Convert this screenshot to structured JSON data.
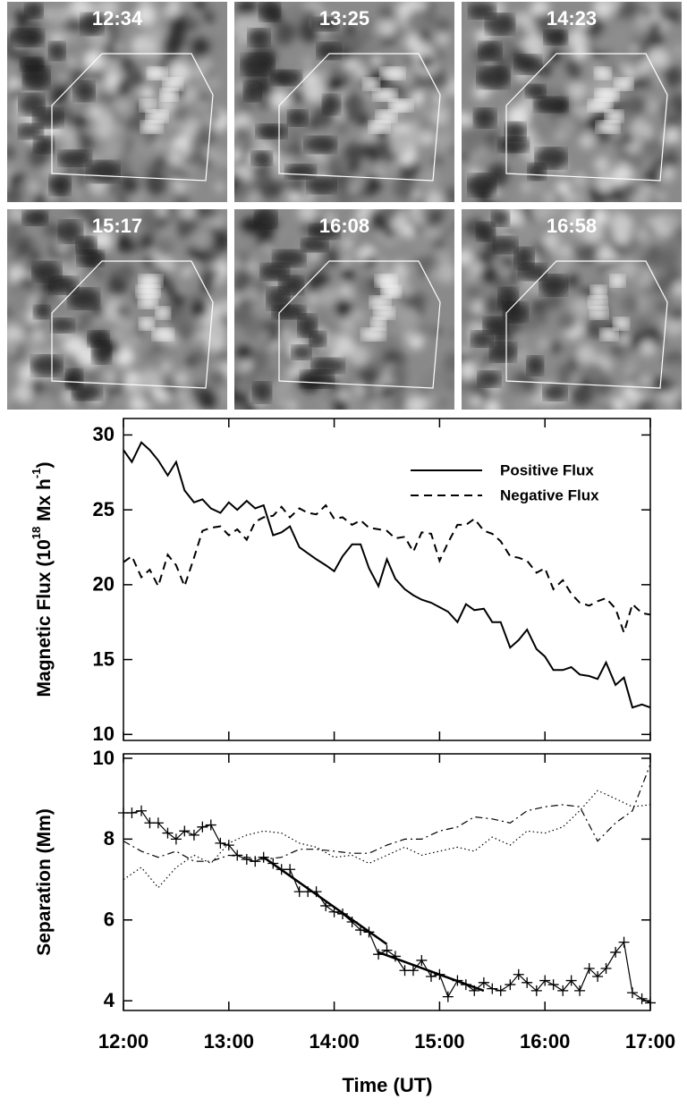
{
  "panels": [
    {
      "label": "12:34"
    },
    {
      "label": "13:25"
    },
    {
      "label": "14:23"
    },
    {
      "label": "15:17"
    },
    {
      "label": "16:08"
    },
    {
      "label": "16:58"
    }
  ],
  "chart_data": [
    {
      "type": "line",
      "ylabel": [
        {
          "text": "Magnetic Flux (10"
        },
        {
          "text": "18",
          "sup": true
        },
        {
          "text": " Mx h"
        },
        {
          "text": "-1",
          "sup": true
        },
        {
          "text": ")"
        }
      ],
      "xlim": [
        12,
        17
      ],
      "xticks": [
        12,
        13,
        14,
        15,
        16,
        17
      ],
      "show_xtick_labels": false,
      "ylim": [
        9.6,
        31.1
      ],
      "yticks": [
        10,
        15,
        20,
        25,
        30
      ],
      "legend": "upper right",
      "x": [
        12,
        12.08,
        12.17,
        12.25,
        12.33,
        12.42,
        12.5,
        12.58,
        12.67,
        12.75,
        12.83,
        12.92,
        13,
        13.08,
        13.17,
        13.25,
        13.33,
        13.42,
        13.5,
        13.58,
        13.67,
        13.75,
        13.83,
        13.92,
        14,
        14.08,
        14.17,
        14.25,
        14.33,
        14.42,
        14.5,
        14.58,
        14.67,
        14.75,
        14.83,
        14.92,
        15,
        15.08,
        15.17,
        15.25,
        15.33,
        15.42,
        15.5,
        15.58,
        15.67,
        15.75,
        15.83,
        15.92,
        16,
        16.08,
        16.17,
        16.25,
        16.33,
        16.42,
        16.5,
        16.58,
        16.67,
        16.75,
        16.83,
        16.92,
        17
      ],
      "series": [
        {
          "name": "Positive Flux",
          "color": "#000000",
          "style": "solid",
          "values": [
            29.0,
            28.2,
            29.5,
            29.0,
            28.3,
            27.3,
            28.2,
            26.3,
            25.5,
            25.7,
            25.1,
            24.8,
            25.5,
            25.0,
            25.6,
            25.1,
            25.3,
            23.3,
            23.5,
            23.9,
            22.5,
            22.1,
            21.7,
            21.3,
            20.9,
            21.9,
            22.7,
            22.7,
            21.1,
            19.9,
            21.7,
            20.4,
            19.7,
            19.3,
            19.0,
            18.8,
            18.5,
            18.2,
            17.5,
            18.7,
            18.3,
            18.4,
            17.5,
            17.5,
            15.8,
            16.3,
            17.0,
            15.7,
            15.2,
            14.3,
            14.3,
            14.5,
            14.0,
            13.9,
            13.7,
            14.8,
            13.3,
            13.8,
            11.8,
            12.0,
            11.8
          ]
        },
        {
          "name": "Negative Flux",
          "color": "#000000",
          "style": "dashed",
          "values": [
            21.5,
            21.9,
            20.5,
            21.0,
            19.9,
            22.0,
            21.3,
            19.9,
            21.8,
            23.6,
            23.8,
            23.9,
            23.3,
            23.7,
            23.0,
            24.2,
            24.5,
            24.6,
            25.2,
            24.5,
            25.1,
            24.8,
            24.7,
            25.3,
            24.4,
            24.5,
            24.0,
            24.3,
            23.8,
            23.7,
            23.6,
            23.1,
            23.2,
            22.2,
            23.5,
            23.4,
            21.6,
            22.8,
            24.0,
            24.0,
            24.4,
            23.6,
            23.4,
            22.9,
            21.9,
            21.8,
            21.6,
            20.8,
            21.1,
            19.7,
            20.3,
            19.4,
            18.8,
            18.6,
            18.9,
            19.1,
            18.4,
            16.8,
            18.7,
            18.1,
            18.0
          ]
        }
      ]
    },
    {
      "type": "line",
      "ylabel": [
        {
          "text": "Separation (Mm)"
        }
      ],
      "xlabel": "Time (UT)",
      "xlim": [
        12,
        17
      ],
      "xticks": [
        {
          "value": 12,
          "label": "12:00"
        },
        {
          "value": 13,
          "label": "13:00"
        },
        {
          "value": 14,
          "label": "14:00"
        },
        {
          "value": 15,
          "label": "15:00"
        },
        {
          "value": 16,
          "label": "16:00"
        },
        {
          "value": 17,
          "label": "17:00"
        }
      ],
      "ylim": [
        3.76,
        10.11
      ],
      "yticks": [
        4,
        6,
        8,
        10
      ],
      "x": [
        12,
        12.08,
        12.17,
        12.25,
        12.33,
        12.42,
        12.5,
        12.58,
        12.67,
        12.75,
        12.83,
        12.92,
        13,
        13.08,
        13.17,
        13.25,
        13.33,
        13.42,
        13.5,
        13.58,
        13.67,
        13.75,
        13.83,
        13.92,
        14,
        14.08,
        14.17,
        14.25,
        14.33,
        14.42,
        14.5,
        14.58,
        14.67,
        14.75,
        14.83,
        14.92,
        15,
        15.08,
        15.17,
        15.25,
        15.33,
        15.42,
        15.5,
        15.58,
        15.67,
        15.75,
        15.83,
        15.92,
        16,
        16.08,
        16.17,
        16.25,
        16.33,
        16.42,
        16.5,
        16.58,
        16.67,
        16.75,
        16.83,
        16.92,
        17
      ],
      "series": [
        {
          "color": "#000000",
          "style": "solid",
          "marker": "plus",
          "values": [
            8.65,
            8.65,
            8.7,
            8.4,
            8.4,
            8.15,
            8.0,
            8.2,
            8.1,
            8.3,
            8.35,
            7.9,
            7.85,
            7.6,
            7.5,
            7.45,
            7.55,
            7.4,
            7.25,
            7.25,
            6.7,
            6.7,
            6.7,
            6.35,
            6.2,
            6.15,
            5.95,
            5.75,
            5.7,
            5.15,
            5.25,
            5.1,
            4.75,
            4.75,
            5.0,
            4.6,
            4.65,
            4.1,
            4.5,
            4.4,
            4.25,
            4.45,
            4.3,
            4.25,
            4.4,
            4.65,
            4.45,
            4.25,
            4.5,
            4.4,
            4.25,
            4.5,
            4.25,
            4.8,
            4.6,
            4.8,
            5.2,
            5.45,
            4.2,
            4.05,
            3.95
          ]
        },
        {
          "color": "#000000",
          "style": "dashdot",
          "x": [
            12,
            12.17,
            12.33,
            12.5,
            12.67,
            12.83,
            13,
            13.17,
            13.33,
            13.5,
            13.67,
            13.83,
            14,
            14.17,
            14.33,
            14.5,
            14.67,
            14.83,
            15,
            15.17,
            15.33,
            15.5,
            15.67,
            15.83,
            16,
            16.17,
            16.33,
            16.5,
            16.67,
            16.83,
            17
          ],
          "values": [
            7.95,
            7.7,
            7.55,
            7.7,
            7.45,
            7.45,
            7.6,
            7.55,
            7.5,
            7.55,
            7.75,
            7.75,
            7.7,
            7.65,
            7.65,
            7.85,
            8.0,
            8.0,
            8.2,
            8.3,
            8.55,
            8.5,
            8.4,
            8.7,
            8.8,
            8.85,
            8.8,
            7.95,
            8.4,
            8.7,
            9.85
          ]
        },
        {
          "color": "#000000",
          "style": "dotted",
          "x": [
            12,
            12.17,
            12.33,
            12.5,
            12.67,
            12.83,
            13,
            13.17,
            13.33,
            13.5,
            13.67,
            13.83,
            14,
            14.17,
            14.33,
            14.5,
            14.67,
            14.83,
            15,
            15.17,
            15.33,
            15.5,
            15.67,
            15.83,
            16,
            16.17,
            16.33,
            16.5,
            16.67,
            16.83,
            17
          ],
          "values": [
            7.0,
            7.3,
            6.8,
            7.3,
            7.6,
            7.4,
            7.9,
            8.1,
            8.2,
            8.15,
            7.9,
            7.8,
            7.55,
            7.6,
            7.4,
            7.6,
            7.8,
            7.6,
            7.7,
            7.8,
            7.7,
            8.05,
            7.85,
            8.2,
            8.15,
            8.3,
            8.7,
            9.2,
            9.0,
            8.8,
            8.85
          ]
        },
        {
          "color": "#000000",
          "style": "fit",
          "x": [
            13.33,
            14.5
          ],
          "values": [
            7.55,
            5.4
          ]
        },
        {
          "color": "#000000",
          "style": "fit",
          "x": [
            14.42,
            15.42
          ],
          "values": [
            5.2,
            4.25
          ]
        }
      ]
    }
  ]
}
